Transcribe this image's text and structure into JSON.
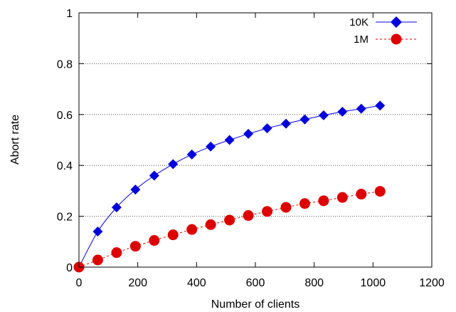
{
  "chart_data": {
    "type": "line",
    "title": "",
    "xlabel": "Number of clients",
    "ylabel": "Abort rate",
    "xlim": [
      0,
      1200
    ],
    "ylim": [
      0,
      1
    ],
    "xticks": [
      "0",
      "200",
      "400",
      "600",
      "800",
      "1000",
      "1200"
    ],
    "yticks": [
      "0",
      "0.2",
      "0.4",
      "0.6",
      "0.8",
      "1"
    ],
    "grid": "horizontal dotted",
    "legend_position": "top-right",
    "x": [
      0,
      64,
      128,
      192,
      256,
      320,
      384,
      448,
      512,
      576,
      640,
      704,
      768,
      832,
      896,
      960,
      1024
    ],
    "series": [
      {
        "name": "10K",
        "color": "#0000dd",
        "marker": "diamond",
        "line": "solid",
        "values": [
          0.0,
          0.14,
          0.235,
          0.305,
          0.36,
          0.405,
          0.443,
          0.474,
          0.5,
          0.524,
          0.546,
          0.564,
          0.581,
          0.597,
          0.611,
          0.623,
          0.635
        ]
      },
      {
        "name": "1M",
        "color": "#dd0000",
        "marker": "circle",
        "line": "dashed",
        "values": [
          0.0,
          0.028,
          0.057,
          0.082,
          0.105,
          0.127,
          0.148,
          0.167,
          0.185,
          0.203,
          0.219,
          0.235,
          0.25,
          0.261,
          0.274,
          0.287,
          0.298
        ]
      }
    ]
  }
}
